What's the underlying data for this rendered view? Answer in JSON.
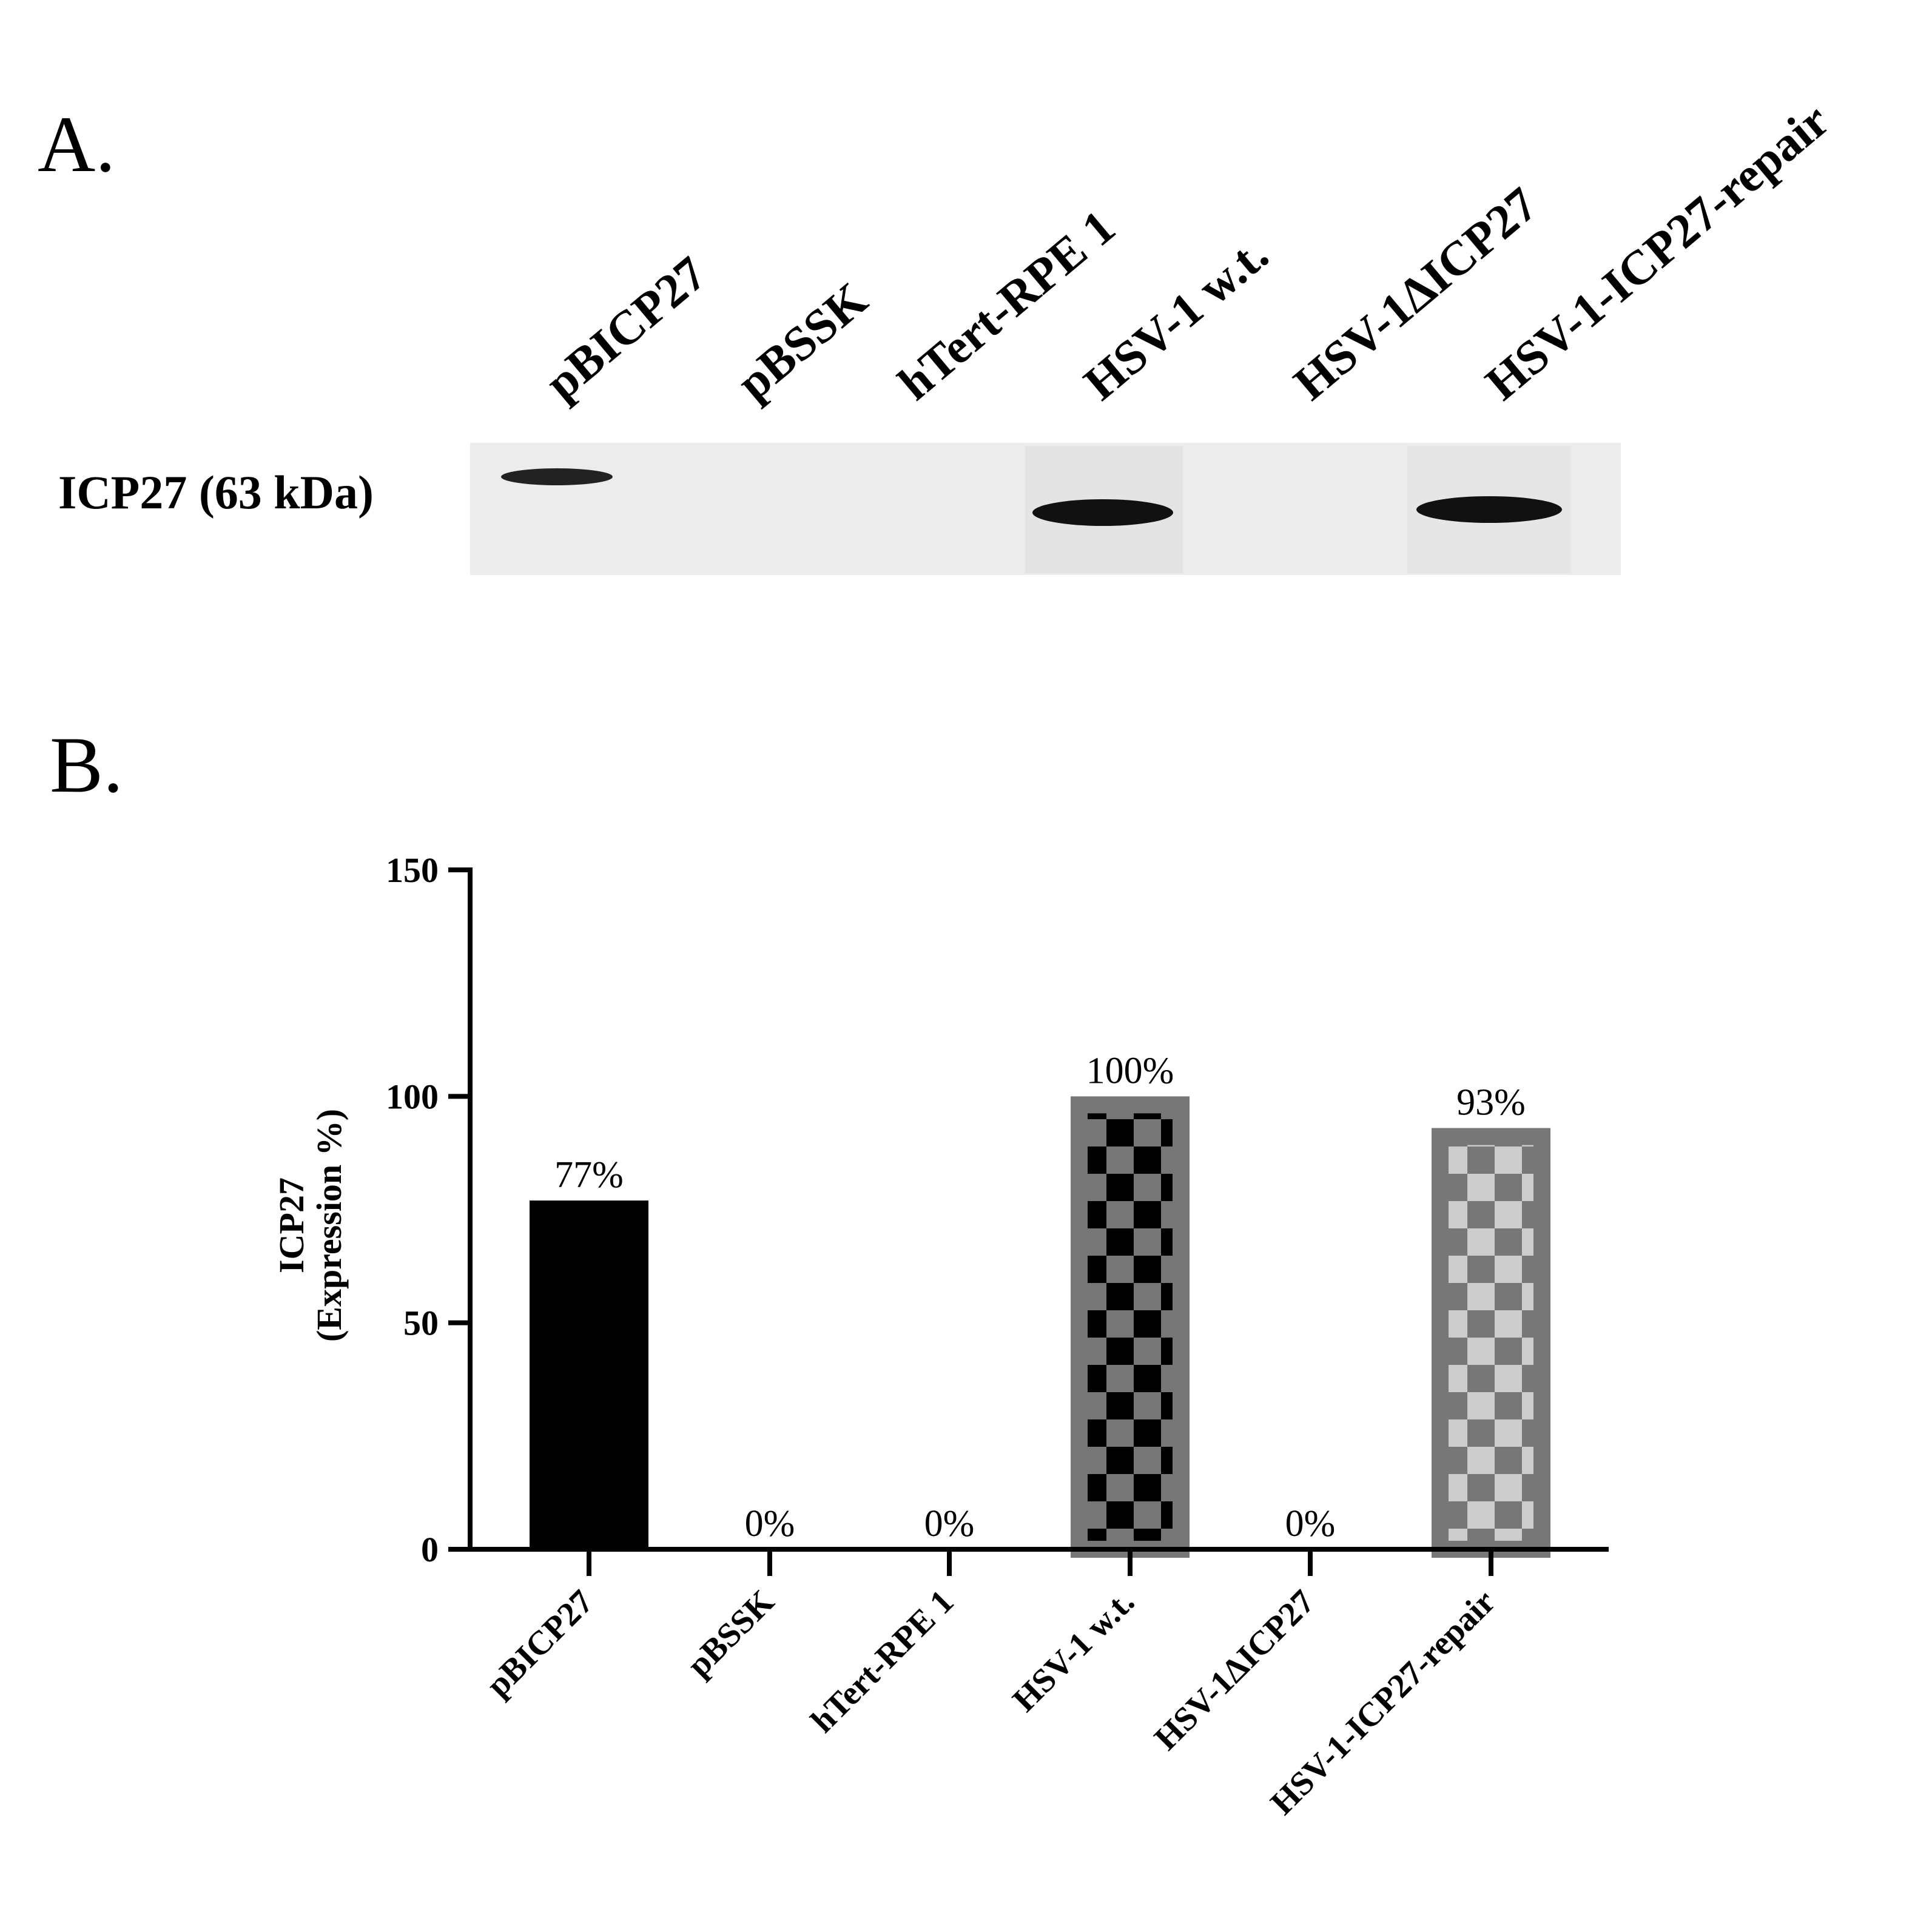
{
  "panel_a": {
    "label": "A.",
    "blot_label": "ICP27 (63 kDa)",
    "lanes": [
      "pBICP27",
      "pBSSK",
      "hTert-RPE 1",
      "HSV-1 w.t.",
      "HSV-1ΔICP27",
      "HSV-1-ICP27-repair"
    ]
  },
  "chart_data": {
    "type": "bar",
    "panel_label": "B.",
    "ylabel": [
      "ICP27",
      "(Expression %)"
    ],
    "categories": [
      "pBICP27",
      "pBSSK",
      "hTert-RPE 1",
      "HSV-1 w.t.",
      "HSV-1ΔICP27",
      "HSV-1-ICP27-repair"
    ],
    "values": [
      77,
      0,
      0,
      100,
      0,
      93
    ],
    "value_labels": [
      "77%",
      "0%",
      "0%",
      "100%",
      "0%",
      "93%"
    ],
    "colors": [
      "#000000",
      null,
      null,
      "#000000",
      null,
      "#cccccc"
    ],
    "checker_colors": [
      null,
      null,
      null,
      "#777777",
      null,
      "#777777"
    ],
    "edge_colors": [
      null,
      null,
      null,
      "#777777",
      null,
      "#777777"
    ],
    "ylim": [
      0,
      150
    ],
    "yticks": [
      0,
      50,
      100,
      150
    ],
    "grid": false
  }
}
